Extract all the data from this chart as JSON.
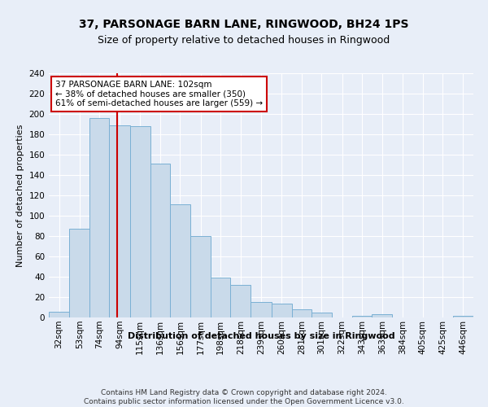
{
  "title": "37, PARSONAGE BARN LANE, RINGWOOD, BH24 1PS",
  "subtitle": "Size of property relative to detached houses in Ringwood",
  "xlabel": "Distribution of detached houses by size in Ringwood",
  "ylabel": "Number of detached properties",
  "bar_color": "#c9daea",
  "bar_edge_color": "#7ab0d4",
  "background_color": "#e8eef8",
  "grid_color": "#ffffff",
  "vline_x": 102,
  "vline_color": "#cc0000",
  "annotation_line1": "37 PARSONAGE BARN LANE: 102sqm",
  "annotation_line2": "← 38% of detached houses are smaller (350)",
  "annotation_line3": "61% of semi-detached houses are larger (559) →",
  "annotation_box_color": "white",
  "annotation_box_edge_color": "#cc0000",
  "footer_text": "Contains HM Land Registry data © Crown copyright and database right 2024.\nContains public sector information licensed under the Open Government Licence v3.0.",
  "bin_labels": [
    "32sqm",
    "53sqm",
    "74sqm",
    "94sqm",
    "115sqm",
    "136sqm",
    "156sqm",
    "177sqm",
    "198sqm",
    "218sqm",
    "239sqm",
    "260sqm",
    "281sqm",
    "301sqm",
    "322sqm",
    "343sqm",
    "363sqm",
    "384sqm",
    "405sqm",
    "425sqm",
    "446sqm"
  ],
  "bin_left": [
    32,
    53,
    74,
    94,
    115,
    136,
    156,
    177,
    198,
    218,
    239,
    260,
    281,
    301,
    322,
    343,
    363,
    384,
    405,
    425,
    446
  ],
  "bin_widths": [
    21,
    21,
    20,
    21,
    21,
    20,
    21,
    21,
    20,
    21,
    21,
    21,
    20,
    21,
    21,
    20,
    21,
    21,
    20,
    21,
    21
  ],
  "bar_heights": [
    6,
    87,
    196,
    189,
    188,
    151,
    111,
    80,
    39,
    32,
    15,
    14,
    8,
    5,
    0,
    2,
    3,
    0,
    0,
    0,
    2
  ],
  "ylim": [
    0,
    240
  ],
  "yticks": [
    0,
    20,
    40,
    60,
    80,
    100,
    120,
    140,
    160,
    180,
    200,
    220,
    240
  ],
  "title_fontsize": 10,
  "subtitle_fontsize": 9,
  "ylabel_fontsize": 8,
  "xlabel_fontsize": 8,
  "tick_fontsize": 7.5,
  "footer_fontsize": 6.5
}
